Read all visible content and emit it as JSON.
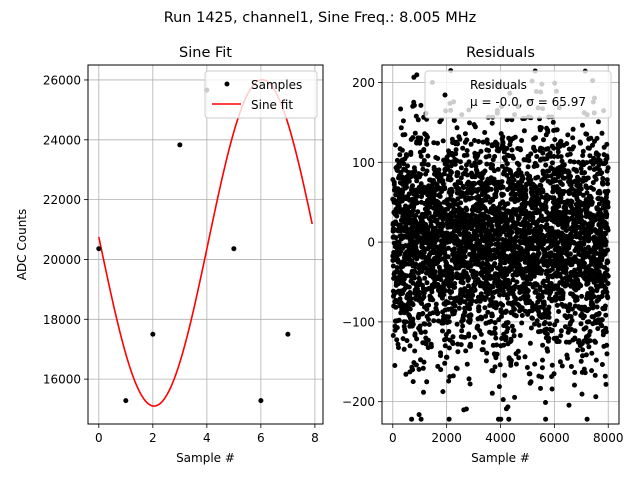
{
  "figure": {
    "suptitle": "Run 1425, channel1, Sine Freq.: 8.005 MHz"
  },
  "chart_data": [
    {
      "type": "line",
      "title": "Sine Fit",
      "xlabel": "Sample #",
      "ylabel": "ADC Counts",
      "xlim": [
        -0.4,
        8.3
      ],
      "ylim": [
        14500,
        26500
      ],
      "xticks": [
        0,
        2,
        4,
        6,
        8
      ],
      "yticks": [
        16000,
        18000,
        20000,
        22000,
        24000,
        26000
      ],
      "grid": true,
      "legend": "top-right",
      "series": [
        {
          "name": "Samples",
          "kind": "scatter",
          "color": "#000000",
          "x": [
            0,
            1,
            2,
            3,
            4,
            5,
            6,
            7
          ],
          "y": [
            20360,
            15280,
            17500,
            23830,
            25660,
            20360,
            15280,
            17500
          ]
        },
        {
          "name": "Sine fit",
          "kind": "line",
          "color": "#ff0000",
          "model": "y = 20555 + 5455*sin(0.7852*x + 3.1057)",
          "x_range": [
            0,
            7.9
          ]
        }
      ]
    },
    {
      "type": "scatter",
      "title": "Residuals",
      "xlabel": "Sample #",
      "ylabel": "",
      "xlim": [
        -400,
        8400
      ],
      "ylim": [
        -228,
        222
      ],
      "xticks": [
        0,
        2000,
        4000,
        6000,
        8000
      ],
      "yticks": [
        -200,
        -100,
        0,
        100,
        200
      ],
      "grid": true,
      "legend": "top-right",
      "series": [
        {
          "name": "Residuals",
          "color": "#000000",
          "sigma": 65.97,
          "mean": -0.0,
          "n_points": 8000
        }
      ],
      "legend_text": [
        "Residuals",
        "μ = -0.0, σ = 65.97"
      ]
    }
  ]
}
